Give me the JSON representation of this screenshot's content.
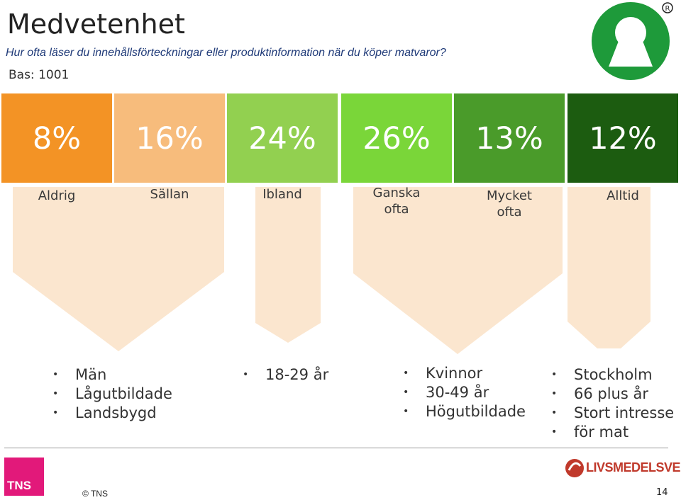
{
  "header": {
    "title": "Medvetenhet",
    "question": "Hur ofta läser du innehållsförteckningar eller produktinformation när du köper matvaror?",
    "base": "Bas: 1001"
  },
  "chart_data": {
    "type": "bar",
    "categories": [
      "Aldrig",
      "Sällan",
      "Ibland",
      "Ganska ofta",
      "Mycket ofta",
      "Alltid"
    ],
    "values": [
      8,
      16,
      24,
      26,
      13,
      12
    ],
    "value_labels": [
      "8%",
      "16%",
      "24%",
      "26%",
      "13%",
      "12%"
    ],
    "colors": [
      "#f39325",
      "#f7bc7c",
      "#92d050",
      "#7ad639",
      "#4a9b2a",
      "#1c5c10"
    ],
    "label_area_color": "#fbe6cf"
  },
  "groups": [
    {
      "items": [
        "Män",
        "Lågutbildade",
        "Landsbygd"
      ]
    },
    {
      "items": [
        "18-29 år"
      ]
    },
    {
      "items": [
        "Kvinnor",
        "30-49 år",
        "Högutbildade"
      ]
    },
    {
      "items": [
        "Stockholm",
        "66 plus år",
        "Stort intresse",
        "för mat"
      ]
    }
  ],
  "footer": {
    "tns_logo": "TNS",
    "copyright": "© TNS",
    "partner_logo": "LIVSMEDELSVERKET",
    "page_number": "14"
  },
  "icons": {
    "brand_logo": "keyhole-logo-icon",
    "registered": "registered-mark-icon"
  }
}
